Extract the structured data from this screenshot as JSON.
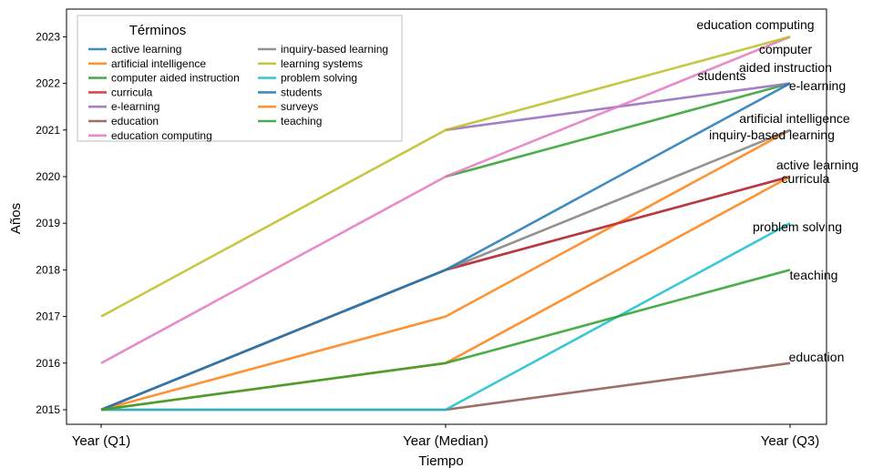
{
  "chart_data": {
    "type": "line",
    "title": "",
    "xlabel": "Tiempo",
    "ylabel": "Años",
    "categories": [
      "Year (Q1)",
      "Year (Median)",
      "Year (Q3)"
    ],
    "ylim": [
      2014.8,
      2023.35
    ],
    "yticks": [
      2015,
      2016,
      2017,
      2018,
      2019,
      2020,
      2021,
      2022,
      2023
    ],
    "grid": false,
    "legend_title": "Términos",
    "legend_position": "top-left",
    "series": [
      {
        "name": "active learning",
        "color": "#1f77b4",
        "values": [
          2015,
          2018,
          2020
        ],
        "end_label": "active learning"
      },
      {
        "name": "artificial intelligence",
        "color": "#ff7f0e",
        "values": [
          2015,
          2017,
          2021
        ],
        "end_label": "artificial intelligence"
      },
      {
        "name": "computer aided instruction",
        "color": "#2ca02c",
        "values": [
          null,
          2020,
          2022
        ],
        "end_label": "computer\naided instruction"
      },
      {
        "name": "curricula",
        "color": "#d62728",
        "values": [
          2015,
          2018,
          2020
        ],
        "end_label": "curricula"
      },
      {
        "name": "e-learning",
        "color": "#9467bd",
        "values": [
          null,
          2021,
          2022
        ],
        "end_label": "e-learning"
      },
      {
        "name": "education",
        "color": "#8c564b",
        "values": [
          2015,
          2015,
          2016
        ],
        "end_label": "education"
      },
      {
        "name": "education computing",
        "color": "#e377c2",
        "values": [
          2016,
          2020,
          2023
        ],
        "end_label": "education computing"
      },
      {
        "name": "inquiry-based learning",
        "color": "#7f7f7f",
        "values": [
          2015,
          2018,
          2021
        ],
        "end_label": "inquiry-based learning"
      },
      {
        "name": "learning systems",
        "color": "#bcbd22",
        "values": [
          2017,
          2021,
          2023
        ],
        "end_label": ""
      },
      {
        "name": "problem solving",
        "color": "#17becf",
        "values": [
          2015,
          2015,
          2019
        ],
        "end_label": "problem solving"
      },
      {
        "name": "students",
        "color": "#1f77b4",
        "values": [
          2015,
          2018,
          2022
        ],
        "end_label": "students"
      },
      {
        "name": "surveys",
        "color": "#ff7f0e",
        "values": [
          2015,
          2016,
          2020
        ],
        "end_label": ""
      },
      {
        "name": "teaching",
        "color": "#2ca02c",
        "values": [
          2015,
          2016,
          2018
        ],
        "end_label": "teaching"
      }
    ]
  }
}
